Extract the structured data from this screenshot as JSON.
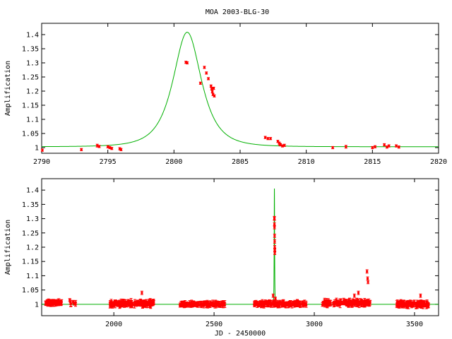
{
  "title": "MOA 2003-BLG-30",
  "colors": {
    "data": "#ff0000",
    "model": "#00b000",
    "axes": "#000000"
  },
  "chart_data": [
    {
      "type": "scatter",
      "panel": "zoom",
      "xlabel": "",
      "ylabel": "Amplification",
      "xlim": [
        2790,
        2820
      ],
      "ylim": [
        0.98,
        1.44
      ],
      "xticks": [
        2790,
        2795,
        2800,
        2805,
        2810,
        2815,
        2820
      ],
      "yticks": [
        1,
        1.05,
        1.1,
        1.15,
        1.2,
        1.25,
        1.3,
        1.35,
        1.4
      ],
      "grid": false,
      "model": {
        "t0": 2801.0,
        "u0": 0.92,
        "tE": 1.45,
        "baseline": 1.003
      },
      "points": [
        [
          2790.05,
          0.991,
          0.004
        ],
        [
          2793.0,
          0.993,
          0.004
        ],
        [
          2794.2,
          1.007,
          0.005
        ],
        [
          2794.35,
          1.004,
          0.004
        ],
        [
          2795.0,
          1.003,
          0.004
        ],
        [
          2795.15,
          1.0,
          0.004
        ],
        [
          2795.3,
          0.997,
          0.004
        ],
        [
          2795.9,
          0.996,
          0.004
        ],
        [
          2796.0,
          0.993,
          0.004
        ],
        [
          2800.9,
          1.302,
          0.004
        ],
        [
          2801.0,
          1.3,
          0.004
        ],
        [
          2802.0,
          1.228,
          0.004
        ],
        [
          2802.3,
          1.284,
          0.004
        ],
        [
          2802.45,
          1.264,
          0.004
        ],
        [
          2802.6,
          1.244,
          0.004
        ],
        [
          2802.8,
          1.218,
          0.004
        ],
        [
          2802.85,
          1.208,
          0.004
        ],
        [
          2802.9,
          1.198,
          0.004
        ],
        [
          2802.95,
          1.188,
          0.004
        ],
        [
          2803.0,
          1.21,
          0.004
        ],
        [
          2803.05,
          1.183,
          0.004
        ],
        [
          2806.9,
          1.036,
          0.004
        ],
        [
          2807.1,
          1.032,
          0.004
        ],
        [
          2807.3,
          1.032,
          0.004
        ],
        [
          2807.85,
          1.022,
          0.004
        ],
        [
          2807.95,
          1.016,
          0.004
        ],
        [
          2808.0,
          1.012,
          0.004
        ],
        [
          2808.05,
          1.01,
          0.004
        ],
        [
          2808.2,
          1.006,
          0.004
        ],
        [
          2808.35,
          1.008,
          0.004
        ],
        [
          2812.0,
          1.0,
          0.004
        ],
        [
          2813.0,
          1.003,
          0.005
        ],
        [
          2815.0,
          1.0,
          0.004
        ],
        [
          2815.2,
          1.003,
          0.004
        ],
        [
          2815.9,
          1.01,
          0.004
        ],
        [
          2816.1,
          1.002,
          0.004
        ],
        [
          2816.25,
          1.006,
          0.004
        ],
        [
          2816.8,
          1.006,
          0.004
        ],
        [
          2817.0,
          1.002,
          0.004
        ]
      ]
    },
    {
      "type": "scatter",
      "panel": "full",
      "xlabel": "JD - 2450000",
      "ylabel": "Amplification",
      "xlim": [
        1640,
        3620
      ],
      "ylim": [
        0.96,
        1.44
      ],
      "xticks": [
        2000,
        2500,
        3000,
        3500
      ],
      "yticks": [
        1,
        1.05,
        1.1,
        1.15,
        1.2,
        1.25,
        1.3,
        1.35,
        1.4
      ],
      "grid": false,
      "model": {
        "t0": 2801.0,
        "u0": 0.92,
        "tE": 1.45,
        "baseline": 1.0
      },
      "seasons": [
        {
          "range": [
            1660,
            1740
          ],
          "count": 70,
          "center": 1.006,
          "spread": 0.012
        },
        {
          "range": [
            1770,
            1810
          ],
          "count": 8,
          "center": 1.004,
          "spread": 0.01
        },
        {
          "range": [
            1980,
            2200
          ],
          "count": 160,
          "center": 1.003,
          "spread": 0.016
        },
        {
          "range": [
            2330,
            2560
          ],
          "count": 130,
          "center": 1.0,
          "spread": 0.012
        },
        {
          "range": [
            2700,
            2960
          ],
          "count": 160,
          "center": 1.002,
          "spread": 0.012
        },
        {
          "range": [
            3040,
            3280
          ],
          "count": 150,
          "center": 1.005,
          "spread": 0.016
        },
        {
          "range": [
            3410,
            3570
          ],
          "count": 130,
          "center": 1.0,
          "spread": 0.014
        }
      ],
      "points": [
        [
          2794.6,
          1.03,
          0.006
        ],
        [
          2800.9,
          1.302,
          0.006
        ],
        [
          2801.0,
          1.3,
          0.006
        ],
        [
          2801.2,
          1.28,
          0.006
        ],
        [
          2801.5,
          1.27,
          0.006
        ],
        [
          2802.0,
          1.24,
          0.006
        ],
        [
          2802.3,
          1.22,
          0.006
        ],
        [
          2802.6,
          1.2,
          0.006
        ],
        [
          2802.9,
          1.19,
          0.006
        ],
        [
          2803.0,
          1.18,
          0.006
        ],
        [
          2806.0,
          1.02,
          0.005
        ],
        [
          3263,
          1.115,
          0.006
        ],
        [
          3266,
          1.09,
          0.006
        ],
        [
          3268,
          1.078,
          0.006
        ],
        [
          3220,
          1.04,
          0.006
        ],
        [
          3200,
          1.03,
          0.006
        ],
        [
          2140,
          1.04,
          0.006
        ],
        [
          1780,
          1.015,
          0.005
        ],
        [
          3530,
          1.03,
          0.006
        ]
      ]
    }
  ]
}
